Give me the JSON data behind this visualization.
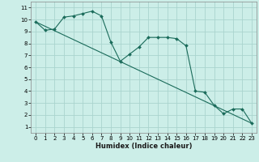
{
  "xlabel": "Humidex (Indice chaleur)",
  "bg_color": "#cceee8",
  "grid_color": "#aad4ce",
  "line_color": "#1a6b5a",
  "xlim": [
    -0.5,
    23.5
  ],
  "ylim": [
    0.5,
    11.5
  ],
  "xticks": [
    0,
    1,
    2,
    3,
    4,
    5,
    6,
    7,
    8,
    9,
    10,
    11,
    12,
    13,
    14,
    15,
    16,
    17,
    18,
    19,
    20,
    21,
    22,
    23
  ],
  "yticks": [
    1,
    2,
    3,
    4,
    5,
    6,
    7,
    8,
    9,
    10,
    11
  ],
  "line1_x": [
    0,
    1,
    2,
    3,
    4,
    5,
    6,
    7,
    8,
    9,
    10,
    11,
    12,
    13,
    14,
    15,
    16,
    17,
    18,
    19,
    20,
    21,
    22,
    23
  ],
  "line1_y": [
    9.8,
    9.1,
    9.2,
    10.2,
    10.3,
    10.5,
    10.7,
    10.3,
    8.1,
    6.5,
    7.1,
    7.7,
    8.5,
    8.5,
    8.5,
    8.4,
    7.8,
    4.0,
    3.9,
    2.8,
    2.1,
    2.5,
    2.5,
    1.3
  ],
  "line2_x": [
    0,
    23
  ],
  "line2_y": [
    9.8,
    1.3
  ]
}
